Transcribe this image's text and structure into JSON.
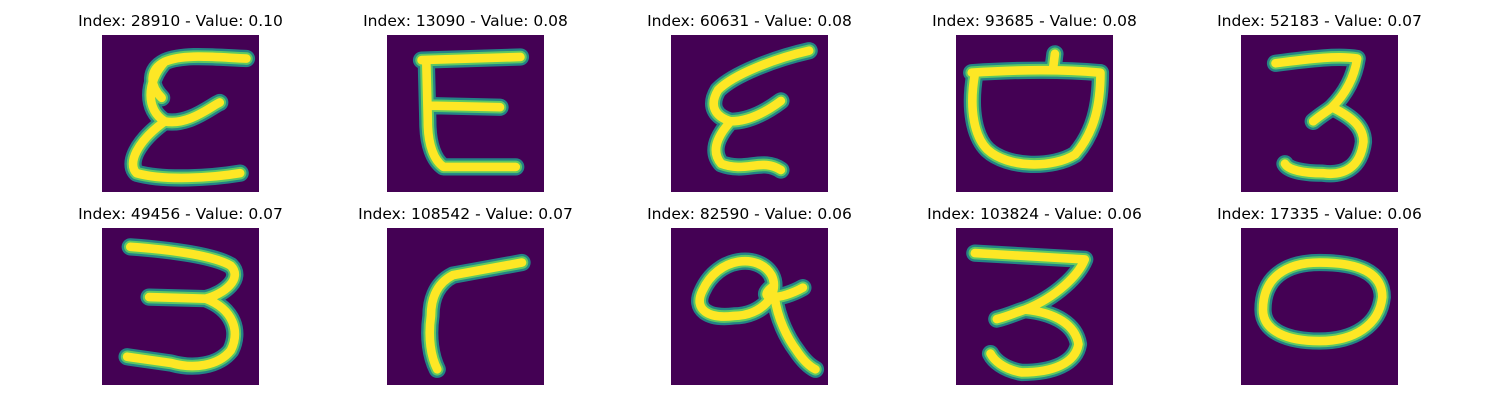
{
  "colors": {
    "background": "#440154",
    "stroke_core": "#fde725",
    "stroke_mid": "#5ec962",
    "stroke_edge": "#21918c"
  },
  "panels": [
    {
      "title": "Index: 28910 - Value: 0.10",
      "glyph": "epsilon-tall"
    },
    {
      "title": "Index: 13090 - Value: 0.08",
      "glyph": "E-shape"
    },
    {
      "title": "Index: 60631 - Value: 0.08",
      "glyph": "epsilon-slanted"
    },
    {
      "title": "Index: 93685 - Value: 0.08",
      "glyph": "bowl-shape"
    },
    {
      "title": "Index: 52183 - Value: 0.07",
      "glyph": "three"
    },
    {
      "title": "Index: 49456 - Value: 0.07",
      "glyph": "three-wide"
    },
    {
      "title": "Index: 108542 - Value: 0.07",
      "glyph": "hook-shape"
    },
    {
      "title": "Index: 82590 - Value: 0.06",
      "glyph": "loop-tail"
    },
    {
      "title": "Index: 103824 - Value: 0.06",
      "glyph": "three-flat-top"
    },
    {
      "title": "Index: 17335 - Value: 0.06",
      "glyph": "zero-oval"
    }
  ]
}
